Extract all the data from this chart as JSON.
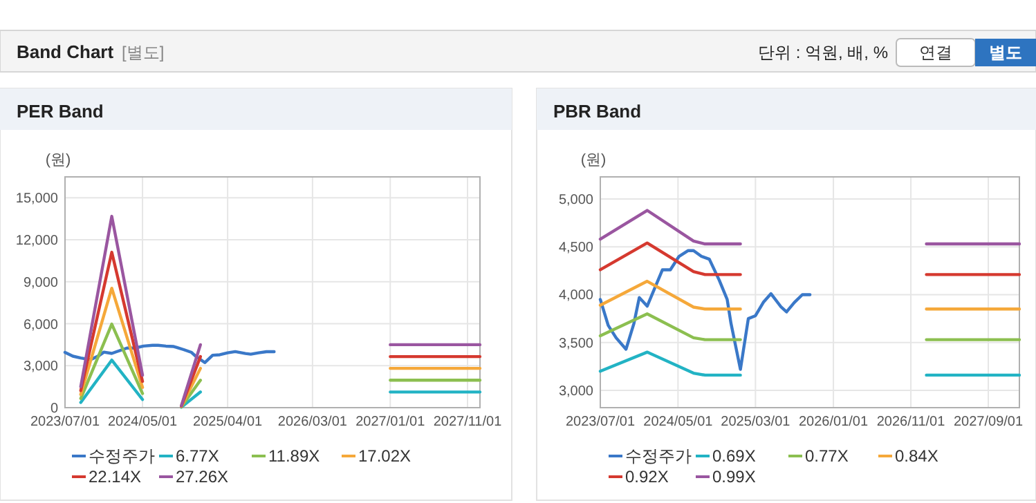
{
  "chart_data": [
    {
      "type": "other",
      "title": "Band Chart",
      "subtitle": "[별도]",
      "annotations": [
        "단위 : 억원, 배, %",
        "연결",
        "별도"
      ]
    },
    {
      "type": "line",
      "title": "PER Band",
      "ylabel": "(원)",
      "grid": true,
      "legend": "bottom",
      "xlim": [
        "2023-07-01",
        "2027-12-20"
      ],
      "xticks": [
        {
          "value": "2023-07-01",
          "label": "2023/07/01"
        },
        {
          "value": "2024-05-01",
          "label": "2024/05/01"
        },
        {
          "value": "2025-04-01",
          "label": "2025/04/01"
        },
        {
          "value": "2026-03-01",
          "label": "2026/03/01"
        },
        {
          "value": "2027-01-01",
          "label": "2027/01/01"
        },
        {
          "value": "2027-11-01",
          "label": "2027/11/01"
        }
      ],
      "ylim": [
        0,
        16500
      ],
      "yticks": [
        0,
        {
          "value": 3000,
          "label": "3,000"
        },
        {
          "value": 6000,
          "label": "6,000"
        },
        {
          "value": 9000,
          "label": "9,000"
        },
        {
          "value": 12000,
          "label": "12,000"
        },
        {
          "value": 15000,
          "label": "15,000"
        }
      ],
      "x": [
        "2023-09-01",
        "2024-01-01",
        "2024-05-01",
        "2024-07-01",
        "2024-10-01",
        "2024-12-15",
        "2026-01-01",
        "2027-01-01",
        "2027-12-20"
      ],
      "series": [
        {
          "name": "수정주가",
          "color": "#3a78c8",
          "x": [
            "2023-07-01",
            "2023-08-01",
            "2023-09-01",
            "2023-10-10",
            "2023-11-10",
            "2023-12-01",
            "2024-01-01",
            "2024-01-20",
            "2024-03-01",
            "2024-04-01",
            "2024-05-05",
            "2024-06-10",
            "2024-07-01",
            "2024-08-01",
            "2024-09-01",
            "2024-10-10",
            "2024-11-10",
            "2024-11-25",
            "2025-01-01",
            "2025-02-01",
            "2025-03-01",
            "2025-04-01",
            "2025-05-01",
            "2025-06-10",
            "2025-07-01",
            "2025-08-01",
            "2025-09-01",
            "2025-10-01"
          ],
          "values": [
            3950,
            3680,
            3550,
            3430,
            3700,
            3970,
            3880,
            4000,
            4260,
            4260,
            4400,
            4460,
            4460,
            4400,
            4370,
            4150,
            3950,
            3700,
            3220,
            3750,
            3780,
            3920,
            4010,
            3870,
            3820,
            3920,
            4000,
            4000
          ]
        },
        {
          "name": "6.77X",
          "color": "#22b3c4",
          "values": [
            370,
            3400,
            580,
            null,
            30,
            1120,
            null,
            1120,
            1120
          ]
        },
        {
          "name": "11.89X",
          "color": "#8cbf50",
          "values": [
            650,
            5970,
            1010,
            null,
            60,
            1960,
            null,
            1960,
            1960
          ]
        },
        {
          "name": "17.02X",
          "color": "#f5a83a",
          "values": [
            940,
            8540,
            1450,
            null,
            90,
            2810,
            null,
            2810,
            2810
          ]
        },
        {
          "name": "22.14X",
          "color": "#d5392f",
          "values": [
            1220,
            11110,
            1880,
            null,
            110,
            3650,
            null,
            3650,
            3650
          ]
        },
        {
          "name": "27.26X",
          "color": "#9a56a0",
          "values": [
            1500,
            13680,
            2320,
            null,
            140,
            4500,
            null,
            4500,
            4500
          ]
        }
      ]
    },
    {
      "type": "line",
      "title": "PBR Band",
      "ylabel": "(원)",
      "grid": true,
      "legend": "bottom",
      "xlim": [
        "2023-07-01",
        "2028-01-01"
      ],
      "xticks": [
        {
          "value": "2023-07-01",
          "label": "2023/07/01"
        },
        {
          "value": "2024-05-01",
          "label": "2024/05/01"
        },
        {
          "value": "2025-03-01",
          "label": "2025/03/01"
        },
        {
          "value": "2026-01-01",
          "label": "2026/01/01"
        },
        {
          "value": "2026-11-01",
          "label": "2026/11/01"
        },
        {
          "value": "2027-09-01",
          "label": "2027/09/01"
        }
      ],
      "ylim": [
        2820,
        5230
      ],
      "yticks": [
        {
          "value": 3000,
          "label": "3,000"
        },
        {
          "value": 3500,
          "label": "3,500"
        },
        {
          "value": 4000,
          "label": "4,000"
        },
        {
          "value": 4500,
          "label": "4,500"
        },
        {
          "value": 5000,
          "label": "5,000"
        }
      ],
      "x": [
        "2023-07-01",
        "2024-01-01",
        "2024-07-01",
        "2024-08-15",
        "2025-01-01",
        "2026-01-01",
        "2027-01-01",
        "2028-01-01"
      ],
      "series": [
        {
          "name": "수정주가",
          "color": "#3a78c8",
          "x": [
            "2023-07-01",
            "2023-08-01",
            "2023-09-01",
            "2023-10-10",
            "2023-11-10",
            "2023-12-01",
            "2024-01-01",
            "2024-01-20",
            "2024-03-01",
            "2024-04-01",
            "2024-05-05",
            "2024-06-10",
            "2024-07-01",
            "2024-08-01",
            "2024-09-01",
            "2024-10-10",
            "2024-11-10",
            "2024-11-25",
            "2025-01-01",
            "2025-02-01",
            "2025-03-01",
            "2025-04-01",
            "2025-05-01",
            "2025-06-10",
            "2025-07-01",
            "2025-08-01",
            "2025-09-01",
            "2025-10-01"
          ],
          "values": [
            3950,
            3680,
            3550,
            3430,
            3700,
            3970,
            3880,
            4000,
            4260,
            4260,
            4400,
            4460,
            4460,
            4400,
            4370,
            4150,
            3950,
            3700,
            3220,
            3750,
            3780,
            3920,
            4010,
            3870,
            3820,
            3920,
            4000,
            4000
          ]
        },
        {
          "name": "0.69X",
          "color": "#22b3c4",
          "values": [
            3200,
            3400,
            3180,
            3160,
            3160,
            null,
            3160,
            3160
          ]
        },
        {
          "name": "0.77X",
          "color": "#8cbf50",
          "values": [
            3570,
            3800,
            3550,
            3530,
            3530,
            null,
            3530,
            3530
          ]
        },
        {
          "name": "0.84X",
          "color": "#f5a83a",
          "values": [
            3890,
            4140,
            3870,
            3850,
            3850,
            null,
            3850,
            3850
          ]
        },
        {
          "name": "0.92X",
          "color": "#d5392f",
          "values": [
            4260,
            4540,
            4240,
            4210,
            4210,
            null,
            4210,
            4210
          ]
        },
        {
          "name": "0.99X",
          "color": "#9a56a0",
          "values": [
            4580,
            4880,
            4560,
            4530,
            4530,
            null,
            4530,
            4530
          ]
        }
      ]
    }
  ]
}
